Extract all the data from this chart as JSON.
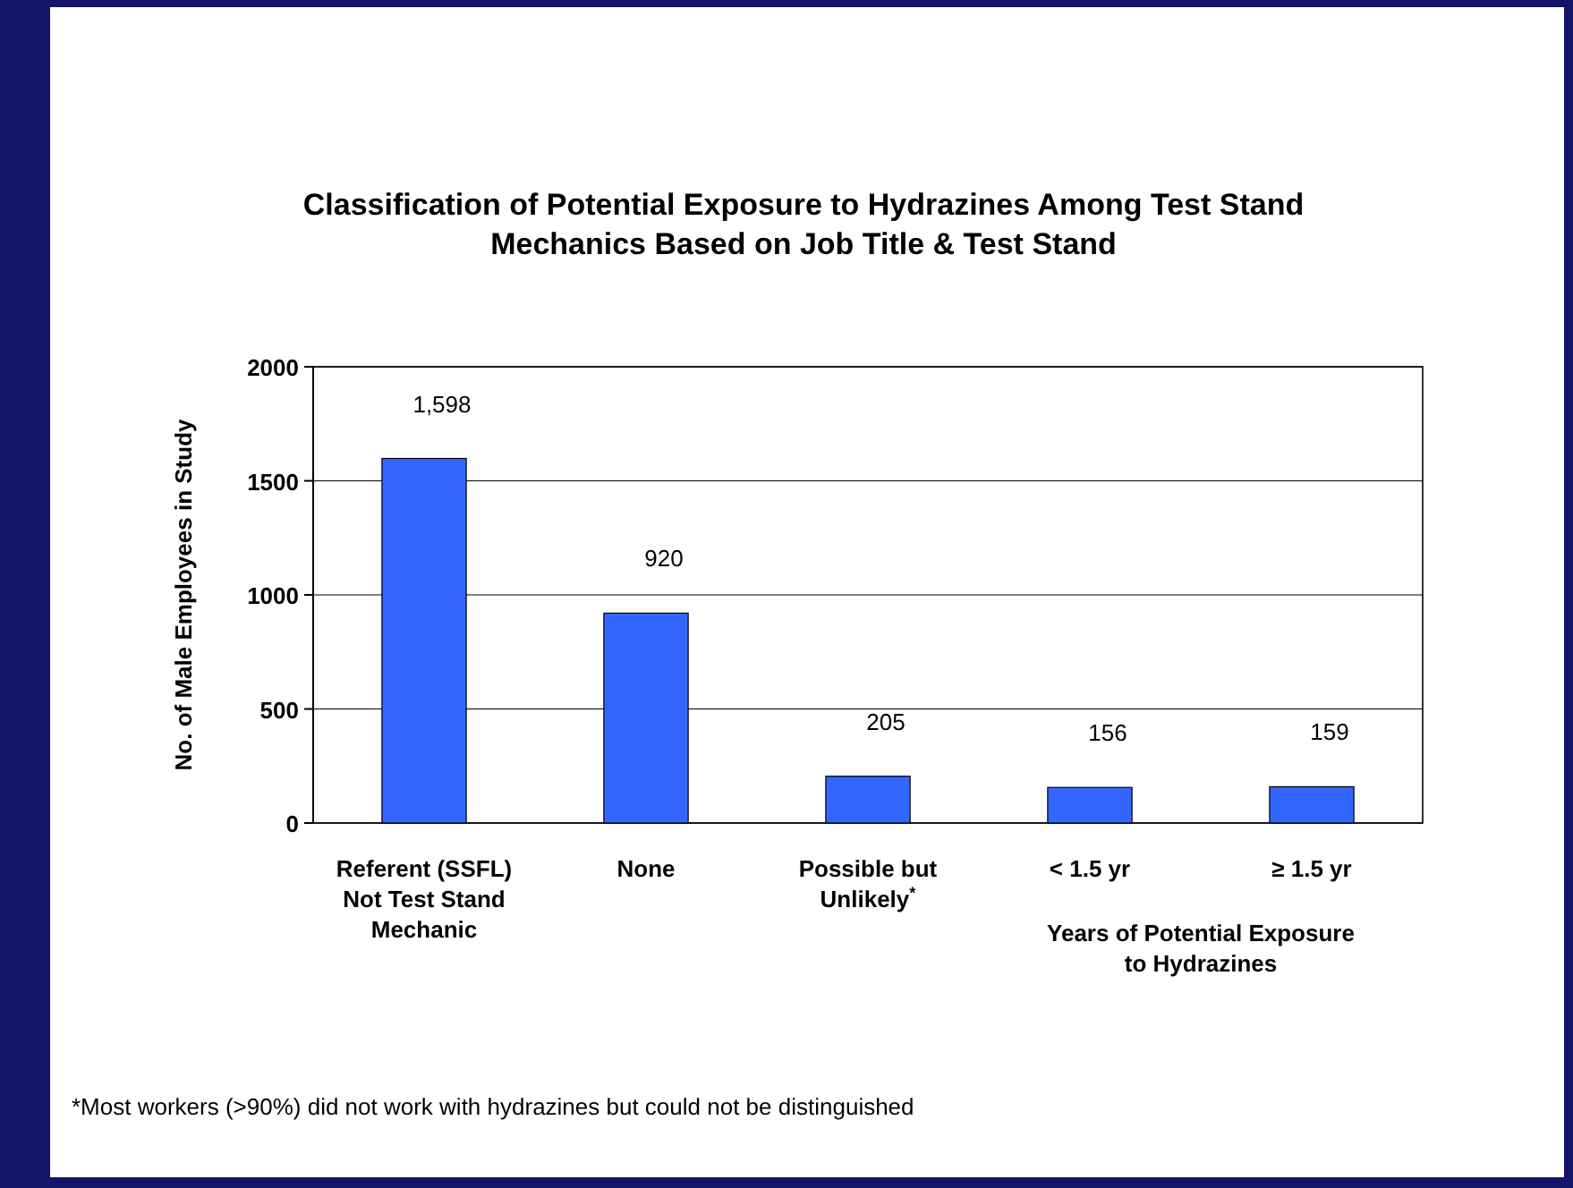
{
  "chart_data": {
    "type": "bar",
    "title": "Classification of Potential Exposure to Hydrazines Among Test Stand\nMechanics Based on Job Title & Test Stand",
    "ylabel": "No. of Male Employees in Study",
    "categories": [
      "Referent (SSFL)\nNot Test Stand\nMechanic",
      "None",
      "Possible but\nUnlikely$^{*}$",
      "< 1.5 yr",
      "≥ 1.5 yr"
    ],
    "values": [
      1598,
      920,
      205,
      156,
      159
    ],
    "value_labels": [
      "1,598",
      "920",
      "205",
      "156",
      "159"
    ],
    "color": "#3366ff",
    "ylim": [
      0,
      2000
    ],
    "yticks": [
      0,
      500,
      1000,
      1500,
      2000
    ],
    "grid": "y",
    "annotations": [
      "Years of Potential Exposure\nto Hydrazines",
      "*Most workers (>90%) did not work with hydrazines but could not be distinguished"
    ]
  }
}
